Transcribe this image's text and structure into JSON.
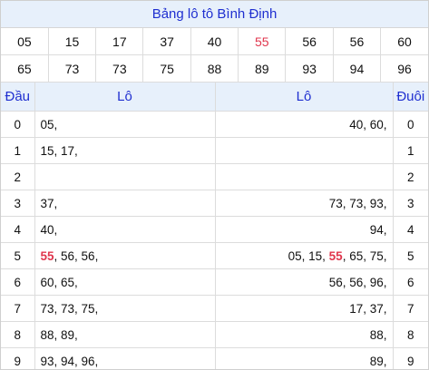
{
  "title": "Bảng lô tô Bình Định",
  "numbers_row1": [
    "05",
    "15",
    "17",
    "37",
    "40",
    "55",
    "56",
    "56",
    "60"
  ],
  "numbers_row2": [
    "65",
    "73",
    "73",
    "75",
    "88",
    "89",
    "93",
    "94",
    "96"
  ],
  "highlight_number": "55",
  "headers": {
    "dau": "Đầu",
    "lo_left": "Lô",
    "lo_right": "Lô",
    "duoi": "Đuôi"
  },
  "rows": [
    {
      "dau": "0",
      "left": "05,",
      "right": "40, 60,",
      "duoi": "0"
    },
    {
      "dau": "1",
      "left": "15, 17,",
      "right": "",
      "duoi": "1"
    },
    {
      "dau": "2",
      "left": "",
      "right": "",
      "duoi": "2"
    },
    {
      "dau": "3",
      "left": "37,",
      "right": "73, 73, 93,",
      "duoi": "3"
    },
    {
      "dau": "4",
      "left": "40,",
      "right": "94,",
      "duoi": "4"
    },
    {
      "dau": "5",
      "left": "55, 56, 56,",
      "right": "05, 15, 55, 65, 75,",
      "duoi": "5"
    },
    {
      "dau": "6",
      "left": "60, 65,",
      "right": "56, 56, 96,",
      "duoi": "6"
    },
    {
      "dau": "7",
      "left": "73, 73, 75,",
      "right": "17, 37,",
      "duoi": "7"
    },
    {
      "dau": "8",
      "left": "88, 89,",
      "right": "88,",
      "duoi": "8"
    },
    {
      "dau": "9",
      "left": "93, 94, 96,",
      "right": "89,",
      "duoi": "9"
    }
  ],
  "colors": {
    "title_bg": "#e7f0fb",
    "title_text": "#1f2fd0",
    "highlight": "#e0364d"
  }
}
